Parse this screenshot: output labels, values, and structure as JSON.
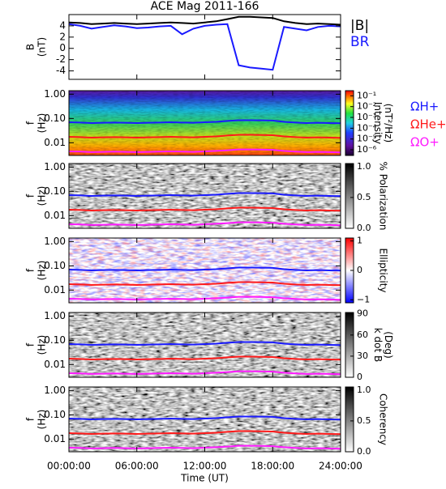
{
  "chart_data": [
    {
      "type": "line",
      "title": "ACE Mag 2011-166",
      "ylabel": [
        "B",
        "(nT)"
      ],
      "x": [
        0,
        1,
        2,
        3,
        4,
        5,
        6,
        7,
        8,
        9,
        10,
        11,
        12,
        13,
        14,
        15,
        16,
        17,
        18,
        19,
        20,
        21,
        22,
        23,
        24
      ],
      "ylim": [
        -5.5,
        6
      ],
      "yticks": [
        -4,
        -2,
        0,
        2,
        4
      ],
      "series": [
        {
          "name": "|B|",
          "color": "#000000",
          "values": [
            4.6,
            4.5,
            4.3,
            4.4,
            4.5,
            4.4,
            4.3,
            4.4,
            4.5,
            4.6,
            4.5,
            4.4,
            4.6,
            4.8,
            5.2,
            5.6,
            5.6,
            5.5,
            5.4,
            4.8,
            4.5,
            4.3,
            4.4,
            4.3,
            4.2
          ]
        },
        {
          "name": "BR",
          "color": "#1a1aff",
          "values": [
            4.3,
            4.0,
            3.5,
            3.8,
            4.1,
            3.9,
            3.6,
            3.7,
            3.9,
            4.0,
            2.5,
            3.5,
            4.0,
            4.2,
            4.3,
            -3.0,
            -3.4,
            -3.6,
            -3.8,
            3.8,
            3.5,
            3.2,
            3.8,
            4.0,
            3.9
          ]
        }
      ]
    },
    {
      "type": "spectrogram",
      "ylabel": [
        "f",
        "(Hz)"
      ],
      "log_y": true,
      "ylim": [
        0.003,
        1.4
      ],
      "yticks": [
        {
          "value": 1,
          "label": "1.00"
        },
        {
          "value": 0.1,
          "label": "0.10"
        },
        {
          "value": 0.01,
          "label": "0.01"
        }
      ],
      "colormap": "rainbow",
      "colorbar": {
        "label": [
          "Intensity",
          "(nT²/Hz)"
        ],
        "log": true,
        "zlim": [
          3e-07,
          0.3
        ],
        "zticks": [
          {
            "value": 0.1,
            "label": "10⁻¹"
          },
          {
            "value": 0.01,
            "label": "10⁻²"
          },
          {
            "value": 0.001,
            "label": "10⁻³"
          },
          {
            "value": 0.0001,
            "label": "10⁻⁴"
          },
          {
            "value": 1e-05,
            "label": "10⁻⁵"
          },
          {
            "value": 1e-06,
            "label": "10⁻⁶"
          }
        ]
      },
      "series": [
        {
          "name": "ΩH+",
          "color": "#1a1aff",
          "values": [
            0.07,
            0.068,
            0.065,
            0.067,
            0.068,
            0.067,
            0.065,
            0.067,
            0.068,
            0.07,
            0.068,
            0.067,
            0.07,
            0.073,
            0.079,
            0.085,
            0.085,
            0.084,
            0.082,
            0.073,
            0.068,
            0.065,
            0.067,
            0.065,
            0.064
          ]
        },
        {
          "name": "ΩHe+",
          "color": "#ff1a1a",
          "values": [
            0.0175,
            0.017,
            0.0163,
            0.0168,
            0.017,
            0.0168,
            0.0163,
            0.0168,
            0.017,
            0.0175,
            0.017,
            0.0168,
            0.0175,
            0.0183,
            0.0198,
            0.0213,
            0.0213,
            0.021,
            0.0205,
            0.0183,
            0.017,
            0.0163,
            0.0168,
            0.0163,
            0.016
          ]
        },
        {
          "name": "ΩO+",
          "color": "#ff1aff",
          "values": [
            0.0044,
            0.0043,
            0.0041,
            0.0042,
            0.0043,
            0.0042,
            0.0041,
            0.0042,
            0.0043,
            0.0044,
            0.0043,
            0.0042,
            0.0044,
            0.0046,
            0.0049,
            0.0053,
            0.0053,
            0.0052,
            0.0051,
            0.0046,
            0.0043,
            0.0041,
            0.0042,
            0.0041,
            0.004
          ]
        }
      ]
    },
    {
      "type": "spectrogram",
      "ylabel": [
        "f",
        "(Hz)"
      ],
      "log_y": true,
      "ylim": [
        0.003,
        1.4
      ],
      "yticks": [
        {
          "value": 1,
          "label": "1.00"
        },
        {
          "value": 0.1,
          "label": "0.10"
        },
        {
          "value": 0.01,
          "label": "0.01"
        }
      ],
      "colormap": "gray",
      "colorbar": {
        "label": [
          "% Polarization"
        ],
        "zlim": [
          0,
          1.05
        ],
        "zticks": [
          {
            "value": 0,
            "label": "0.0"
          },
          {
            "value": 0.5,
            "label": "0.5"
          },
          {
            "value": 1,
            "label": "1.0"
          }
        ]
      }
    },
    {
      "type": "spectrogram",
      "ylabel": [
        "f",
        "(Hz)"
      ],
      "log_y": true,
      "ylim": [
        0.003,
        1.4
      ],
      "yticks": [
        {
          "value": 1,
          "label": "1.00"
        },
        {
          "value": 0.1,
          "label": "0.10"
        },
        {
          "value": 0.01,
          "label": "0.01"
        }
      ],
      "colormap": "bwr",
      "colorbar": {
        "label": [
          "Ellipticity"
        ],
        "zlim": [
          -1.1,
          1.1
        ],
        "zticks": [
          {
            "value": -1,
            "label": "−1"
          },
          0,
          1
        ]
      }
    },
    {
      "type": "spectrogram",
      "ylabel": [
        "f",
        "(Hz)"
      ],
      "log_y": true,
      "ylim": [
        0.003,
        1.4
      ],
      "yticks": [
        {
          "value": 1,
          "label": "1.00"
        },
        {
          "value": 0.1,
          "label": "0.10"
        },
        {
          "value": 0.01,
          "label": "0.01"
        }
      ],
      "colormap": "gray",
      "colorbar": {
        "label": [
          "k dot B",
          "(Deg)"
        ],
        "zlim": [
          0,
          92
        ],
        "zticks": [
          0,
          30,
          60,
          90
        ]
      }
    },
    {
      "type": "spectrogram",
      "ylabel": [
        "f",
        "(Hz)"
      ],
      "log_y": true,
      "ylim": [
        0.003,
        1.4
      ],
      "yticks": [
        {
          "value": 1,
          "label": "1.00"
        },
        {
          "value": 0.1,
          "label": "0.10"
        },
        {
          "value": 0.01,
          "label": "0.01"
        }
      ],
      "colormap": "gray",
      "colorbar": {
        "label": [
          "Coherency"
        ],
        "zlim": [
          0,
          1.05
        ],
        "zticks": [
          {
            "value": 0,
            "label": "0.0"
          },
          {
            "value": 0.5,
            "label": "0.5"
          },
          {
            "value": 1,
            "label": "1.0"
          }
        ]
      },
      "xlabel": "Time (UT)",
      "xlim": [
        0,
        24
      ],
      "xticks": [
        {
          "value": 0,
          "label": "00:00:00"
        },
        {
          "value": 6,
          "label": "06:00:00"
        },
        {
          "value": 12,
          "label": "12:00:00"
        },
        {
          "value": 18,
          "label": "18:00:00"
        },
        {
          "value": 24,
          "label": "24:00:00"
        }
      ]
    }
  ]
}
